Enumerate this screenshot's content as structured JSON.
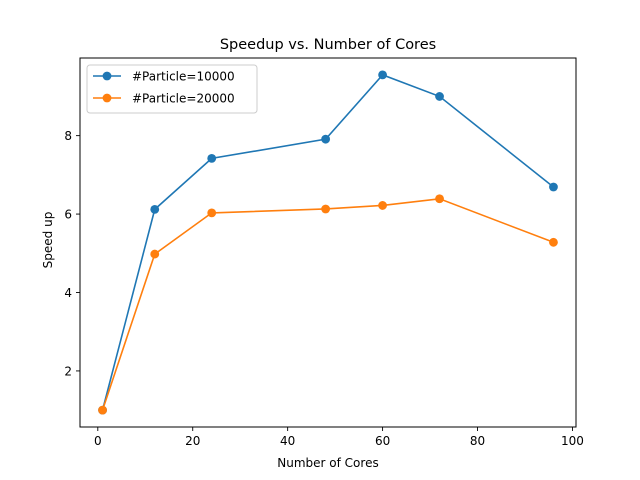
{
  "chart_data": {
    "type": "line",
    "title": "Speedup vs. Number of Cores",
    "xlabel": "Number of Cores",
    "ylabel": "Speed up",
    "xlim": [
      -3.75,
      100.75
    ],
    "ylim": [
      0.57,
      9.98
    ],
    "xticks": [
      0,
      20,
      40,
      60,
      80,
      100
    ],
    "yticks": [
      2,
      4,
      6,
      8
    ],
    "grid": false,
    "legend_position": "upper left",
    "x": [
      1,
      12,
      24,
      48,
      60,
      72,
      96
    ],
    "series": [
      {
        "name": "#Particle=10000",
        "color": "#1f77b4",
        "marker": "circle",
        "values": [
          1.0,
          6.12,
          7.42,
          7.91,
          9.55,
          9.0,
          6.69
        ]
      },
      {
        "name": "#Particle=20000",
        "color": "#ff7f0e",
        "marker": "circle",
        "values": [
          1.0,
          4.98,
          6.03,
          6.13,
          6.22,
          6.39,
          5.28
        ]
      }
    ]
  }
}
